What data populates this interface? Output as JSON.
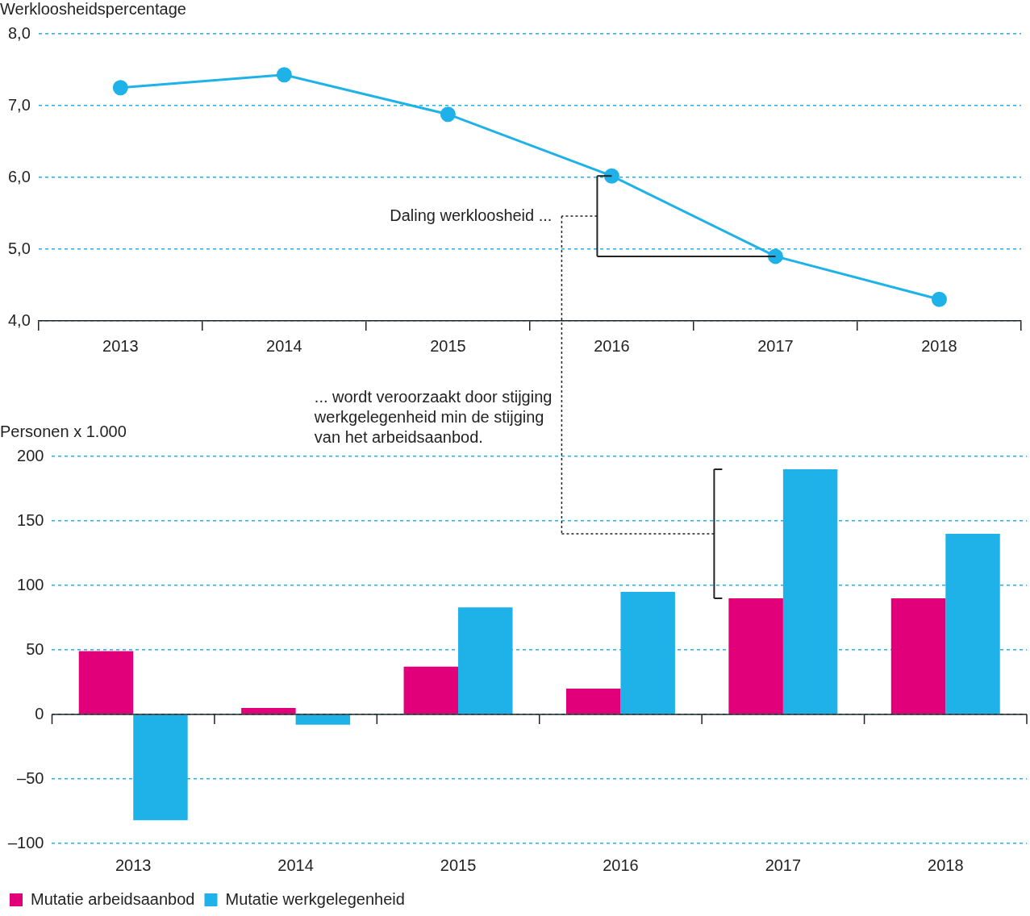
{
  "chart_data": [
    {
      "type": "line",
      "y_label": "Werkloosheidspercentage",
      "categories": [
        "2013",
        "2014",
        "2015",
        "2016",
        "2017",
        "2018"
      ],
      "values": [
        7.25,
        7.43,
        6.88,
        6.02,
        4.9,
        4.3
      ],
      "color": "#1fb2e8",
      "marker": "circle",
      "ylim": [
        4,
        8
      ],
      "yticks": [
        {
          "value": 4,
          "label": "4,0"
        },
        {
          "value": 5,
          "label": "5,0"
        },
        {
          "value": 6,
          "label": "6,0"
        },
        {
          "value": 7,
          "label": "7,0"
        },
        {
          "value": 8,
          "label": "8,0"
        }
      ],
      "grid": true,
      "annotations": [
        "Daling werkloosheid ..."
      ]
    },
    {
      "type": "bar",
      "y_label": "Personen x 1.000",
      "categories": [
        "2013",
        "2014",
        "2015",
        "2016",
        "2017",
        "2018"
      ],
      "series": [
        {
          "name": "Mutatie arbeidsaanbod",
          "color": "#e2007a",
          "values": [
            49,
            5,
            37,
            20,
            90,
            90
          ]
        },
        {
          "name": "Mutatie werkgelegenheid",
          "color": "#1fb2e8",
          "values": [
            -82,
            -8,
            83,
            95,
            190,
            140
          ]
        }
      ],
      "ylim": [
        -100,
        200
      ],
      "yticks": [
        {
          "value": -100,
          "label": "–100"
        },
        {
          "value": -50,
          "label": "–50"
        },
        0,
        50,
        100,
        150,
        200
      ],
      "grid": true,
      "legend": "bottom",
      "annotations": [
        "... wordt veroorzaakt door stijging\nwerkgelegenheid min de stijging\nvan het arbeidsaanbod."
      ]
    }
  ]
}
